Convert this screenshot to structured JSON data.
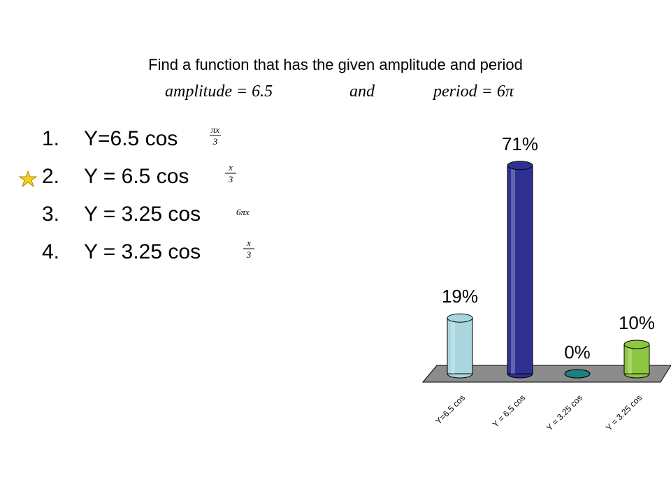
{
  "question": {
    "title": "Find a function that has the given amplitude and period",
    "formula": {
      "left": "amplitude = 6.5",
      "mid": "and",
      "right": "period = 6π"
    }
  },
  "options": [
    {
      "number": "1.",
      "text": "Y=6.5 cos",
      "numerator": "πx",
      "denominator": "3"
    },
    {
      "number": "2.",
      "text": "Y = 6.5 cos",
      "numerator": "x",
      "denominator": "3"
    },
    {
      "number": "3.",
      "text": "Y = 3.25 cos",
      "inline": "6πx"
    },
    {
      "number": "4.",
      "text": "Y = 3.25 cos",
      "numerator": "x",
      "denominator": "3"
    }
  ],
  "chart_data": {
    "type": "bar",
    "categories": [
      "Y=6.5 cos",
      "Y = 6.5 cos",
      "Y = 3.25 cos",
      "Y = 3.25 cos"
    ],
    "values": [
      19,
      71,
      0,
      10
    ],
    "value_labels": [
      "19%",
      "71%",
      "0%",
      "10%"
    ],
    "colors": [
      "#a9d6de",
      "#2e3192",
      "#1e7f80",
      "#8dc63f"
    ]
  }
}
